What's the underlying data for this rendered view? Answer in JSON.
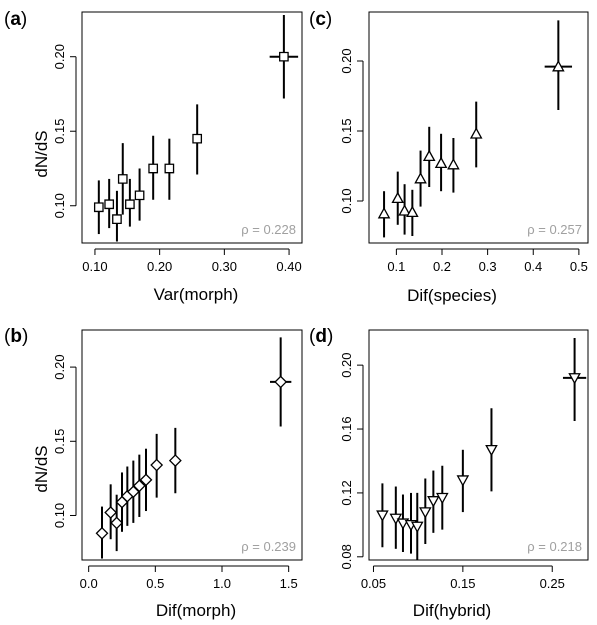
{
  "chart_data": [
    {
      "type": "scatter",
      "panel_label": "a",
      "marker": "square",
      "xlabel": "Var(morph)",
      "ylabel": "dN/dS",
      "xlim": [
        0.08,
        0.42
      ],
      "ylim": [
        0.075,
        0.23
      ],
      "xticks": [
        0.1,
        0.2,
        0.3,
        0.4
      ],
      "xtick_labels": [
        "0.10",
        "0.20",
        "0.30",
        "0.40"
      ],
      "yticks": [
        0.1,
        0.15,
        0.2
      ],
      "ytick_labels": [
        "0.10",
        "0.15",
        "0.20"
      ],
      "annotation": "ρ = 0.228",
      "points": [
        {
          "x": 0.106,
          "y": 0.099,
          "ylo": 0.081,
          "yhi": 0.117
        },
        {
          "x": 0.122,
          "y": 0.101,
          "ylo": 0.085,
          "yhi": 0.118
        },
        {
          "x": 0.134,
          "y": 0.091,
          "ylo": 0.076,
          "yhi": 0.11
        },
        {
          "x": 0.143,
          "y": 0.118,
          "ylo": 0.094,
          "yhi": 0.142
        },
        {
          "x": 0.154,
          "y": 0.101,
          "ylo": 0.086,
          "yhi": 0.118
        },
        {
          "x": 0.169,
          "y": 0.107,
          "ylo": 0.09,
          "yhi": 0.125
        },
        {
          "x": 0.19,
          "y": 0.125,
          "ylo": 0.104,
          "yhi": 0.147
        },
        {
          "x": 0.215,
          "y": 0.125,
          "ylo": 0.104,
          "yhi": 0.145
        },
        {
          "x": 0.258,
          "y": 0.145,
          "ylo": 0.121,
          "yhi": 0.168
        },
        {
          "x": 0.392,
          "y": 0.2,
          "ylo": 0.172,
          "yhi": 0.228,
          "xlo": 0.37,
          "xhi": 0.414
        }
      ]
    },
    {
      "type": "scatter",
      "panel_label": "c",
      "marker": "triangle-up",
      "xlabel": "Dif(species)",
      "ylabel": "",
      "xlim": [
        0.04,
        0.52
      ],
      "ylim": [
        0.07,
        0.235
      ],
      "xticks": [
        0.1,
        0.2,
        0.3,
        0.4,
        0.5
      ],
      "xtick_labels": [
        "0.1",
        "0.2",
        "0.3",
        "0.4",
        "0.5"
      ],
      "yticks": [
        0.1,
        0.15,
        0.2
      ],
      "ytick_labels": [
        "0.10",
        "0.15",
        "0.20"
      ],
      "annotation": "ρ = 0.257",
      "points": [
        {
          "x": 0.073,
          "y": 0.091,
          "ylo": 0.074,
          "yhi": 0.107
        },
        {
          "x": 0.103,
          "y": 0.102,
          "ylo": 0.083,
          "yhi": 0.121
        },
        {
          "x": 0.118,
          "y": 0.093,
          "ylo": 0.076,
          "yhi": 0.112
        },
        {
          "x": 0.135,
          "y": 0.092,
          "ylo": 0.075,
          "yhi": 0.108
        },
        {
          "x": 0.153,
          "y": 0.116,
          "ylo": 0.096,
          "yhi": 0.136
        },
        {
          "x": 0.172,
          "y": 0.132,
          "ylo": 0.11,
          "yhi": 0.153
        },
        {
          "x": 0.198,
          "y": 0.127,
          "ylo": 0.107,
          "yhi": 0.148
        },
        {
          "x": 0.225,
          "y": 0.126,
          "ylo": 0.106,
          "yhi": 0.145
        },
        {
          "x": 0.275,
          "y": 0.148,
          "ylo": 0.124,
          "yhi": 0.171
        },
        {
          "x": 0.455,
          "y": 0.196,
          "ylo": 0.165,
          "yhi": 0.229,
          "xlo": 0.425,
          "xhi": 0.485
        }
      ]
    },
    {
      "type": "scatter",
      "panel_label": "b",
      "marker": "diamond",
      "xlabel": "Dif(morph)",
      "ylabel": "dN/dS",
      "xlim": [
        -0.05,
        1.6
      ],
      "ylim": [
        0.07,
        0.225
      ],
      "xticks": [
        0.0,
        0.5,
        1.0,
        1.5
      ],
      "xtick_labels": [
        "0.0",
        "0.5",
        "1.0",
        "1.5"
      ],
      "yticks": [
        0.1,
        0.15,
        0.2
      ],
      "ytick_labels": [
        "0.10",
        "0.15",
        "0.20"
      ],
      "annotation": "ρ = 0.239",
      "points": [
        {
          "x": 0.1,
          "y": 0.088,
          "ylo": 0.071,
          "yhi": 0.106
        },
        {
          "x": 0.165,
          "y": 0.102,
          "ylo": 0.084,
          "yhi": 0.121
        },
        {
          "x": 0.21,
          "y": 0.095,
          "ylo": 0.076,
          "yhi": 0.114
        },
        {
          "x": 0.25,
          "y": 0.109,
          "ylo": 0.089,
          "yhi": 0.129
        },
        {
          "x": 0.29,
          "y": 0.113,
          "ylo": 0.093,
          "yhi": 0.133
        },
        {
          "x": 0.335,
          "y": 0.116,
          "ylo": 0.095,
          "yhi": 0.137
        },
        {
          "x": 0.38,
          "y": 0.12,
          "ylo": 0.099,
          "yhi": 0.141
        },
        {
          "x": 0.43,
          "y": 0.124,
          "ylo": 0.103,
          "yhi": 0.145
        },
        {
          "x": 0.51,
          "y": 0.134,
          "ylo": 0.112,
          "yhi": 0.155
        },
        {
          "x": 0.65,
          "y": 0.137,
          "ylo": 0.115,
          "yhi": 0.159
        },
        {
          "x": 1.44,
          "y": 0.19,
          "ylo": 0.16,
          "yhi": 0.22,
          "xlo": 1.36,
          "xhi": 1.52
        }
      ]
    },
    {
      "type": "scatter",
      "panel_label": "d",
      "marker": "triangle-down",
      "xlabel": "Dif(hybrid)",
      "ylabel": "",
      "xlim": [
        0.045,
        0.29
      ],
      "ylim": [
        0.078,
        0.222
      ],
      "xticks": [
        0.05,
        0.15,
        0.25
      ],
      "xtick_labels": [
        "0.05",
        "0.15",
        "0.25"
      ],
      "yticks": [
        0.08,
        0.12,
        0.16,
        0.2
      ],
      "ytick_labels": [
        "0.08",
        "0.12",
        "0.16",
        "0.20"
      ],
      "annotation": "ρ = 0.218",
      "points": [
        {
          "x": 0.06,
          "y": 0.106,
          "ylo": 0.086,
          "yhi": 0.126
        },
        {
          "x": 0.075,
          "y": 0.104,
          "ylo": 0.085,
          "yhi": 0.124
        },
        {
          "x": 0.083,
          "y": 0.101,
          "ylo": 0.083,
          "yhi": 0.119
        },
        {
          "x": 0.092,
          "y": 0.1,
          "ylo": 0.082,
          "yhi": 0.12
        },
        {
          "x": 0.099,
          "y": 0.099,
          "ylo": 0.078,
          "yhi": 0.12
        },
        {
          "x": 0.108,
          "y": 0.108,
          "ylo": 0.088,
          "yhi": 0.129
        },
        {
          "x": 0.117,
          "y": 0.115,
          "ylo": 0.095,
          "yhi": 0.134
        },
        {
          "x": 0.127,
          "y": 0.117,
          "ylo": 0.097,
          "yhi": 0.137
        },
        {
          "x": 0.15,
          "y": 0.128,
          "ylo": 0.108,
          "yhi": 0.147
        },
        {
          "x": 0.182,
          "y": 0.147,
          "ylo": 0.121,
          "yhi": 0.173
        },
        {
          "x": 0.275,
          "y": 0.192,
          "ylo": 0.165,
          "yhi": 0.217,
          "xlo": 0.262,
          "xhi": 0.288
        }
      ]
    }
  ]
}
